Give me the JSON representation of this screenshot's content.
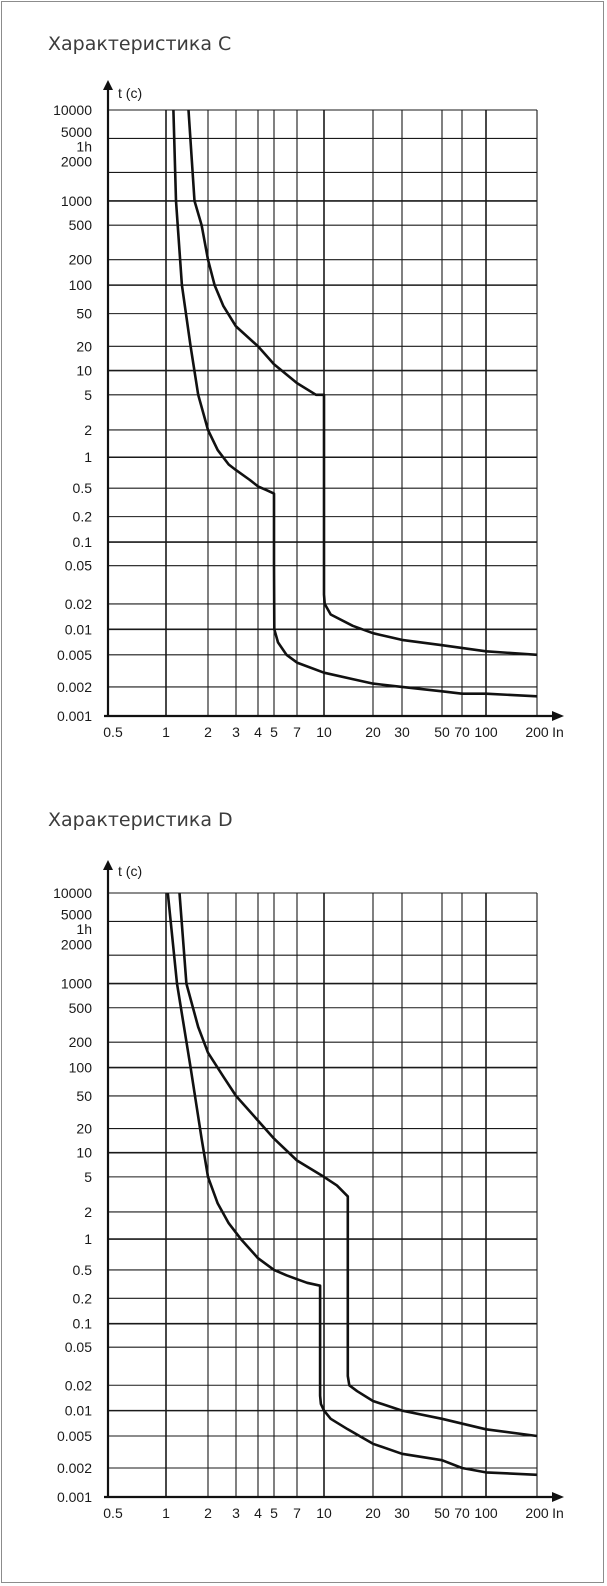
{
  "charts": [
    {
      "title": "Характеристика C",
      "ylabel": "t (c)",
      "xunit": "In",
      "y_ticks": [
        "10000",
        "5000",
        "1h",
        "2000",
        "1000",
        "500",
        "200",
        "100",
        "50",
        "20",
        "10",
        "5",
        "2",
        "1",
        "0.5",
        "0.2",
        "0.1",
        "0.05",
        "0.02",
        "0.01",
        "0.005",
        "0.002",
        "0.001"
      ],
      "x_ticks": [
        "0.5",
        "1",
        "2",
        "3",
        "4",
        "5",
        "7",
        "10",
        "20",
        "30",
        "50",
        "70",
        "100",
        "200"
      ]
    },
    {
      "title": "Характеристика D",
      "ylabel": "t (c)",
      "xunit": "In",
      "y_ticks": [
        "10000",
        "5000",
        "1h",
        "2000",
        "1000",
        "500",
        "200",
        "100",
        "50",
        "20",
        "10",
        "5",
        "2",
        "1",
        "0.5",
        "0.2",
        "0.1",
        "0.05",
        "0.02",
        "0.01",
        "0.005",
        "0.002",
        "0.001"
      ],
      "x_ticks": [
        "0.5",
        "1",
        "2",
        "3",
        "4",
        "5",
        "7",
        "10",
        "20",
        "30",
        "50",
        "70",
        "100",
        "200"
      ]
    }
  ],
  "chart_data": [
    {
      "type": "line",
      "title": "Характеристика C",
      "ylabel": "t (c)",
      "xlabel": "In",
      "x_scale": "log",
      "y_scale": "log",
      "grid": true,
      "xlim": [
        0.5,
        200
      ],
      "ylim": [
        0.001,
        10000
      ],
      "series": [
        {
          "x": [
            1.13,
            1.18,
            1.3,
            1.5,
            1.7,
            2,
            2.3,
            2.7,
            3,
            3.6,
            4,
            4.5,
            5,
            5,
            5.02,
            5.3,
            6,
            7,
            10,
            15,
            20,
            30,
            50,
            70,
            100,
            200
          ],
          "y": [
            10000,
            1000,
            100,
            20,
            5,
            2,
            1.2,
            0.85,
            0.75,
            0.6,
            0.52,
            0.47,
            0.42,
            0.05,
            0.01,
            0.007,
            0.005,
            0.004,
            0.003,
            0.0025,
            0.0022,
            0.002,
            0.0018,
            0.0017,
            0.0017,
            0.0016
          ]
        },
        {
          "x": [
            1.45,
            1.6,
            1.8,
            2,
            2.2,
            2.5,
            3,
            4,
            5,
            7,
            9,
            10,
            10,
            10.1,
            11,
            15,
            20,
            30,
            50,
            100,
            200
          ],
          "y": [
            10000,
            1000,
            500,
            200,
            100,
            60,
            35,
            20,
            12,
            7,
            5,
            5,
            0.025,
            0.02,
            0.015,
            0.011,
            0.009,
            0.0075,
            0.0065,
            0.0055,
            0.005
          ]
        }
      ]
    },
    {
      "type": "line",
      "title": "Характеристика D",
      "ylabel": "t (c)",
      "xlabel": "In",
      "x_scale": "log",
      "y_scale": "log",
      "grid": true,
      "xlim": [
        0.5,
        200
      ],
      "ylim": [
        0.001,
        10000
      ],
      "series": [
        {
          "x": [
            1.03,
            1.2,
            1.5,
            1.8,
            2,
            2.3,
            2.7,
            3.2,
            4,
            5,
            6,
            7,
            8,
            9.5,
            9.5,
            9.6,
            10,
            11,
            14,
            20,
            30,
            50,
            70,
            100,
            200
          ],
          "y": [
            10000,
            1000,
            100,
            15,
            5,
            2.5,
            1.5,
            1,
            0.65,
            0.5,
            0.42,
            0.37,
            0.33,
            0.3,
            0.015,
            0.012,
            0.01,
            0.008,
            0.006,
            0.004,
            0.003,
            0.0025,
            0.002,
            0.0018,
            0.0017
          ]
        },
        {
          "x": [
            1.25,
            1.4,
            1.7,
            2,
            2.5,
            3,
            4,
            5,
            7,
            10,
            12,
            14,
            14,
            14.3,
            16,
            20,
            30,
            50,
            100,
            200
          ],
          "y": [
            10000,
            1000,
            300,
            150,
            80,
            50,
            25,
            15,
            8,
            5,
            4,
            3,
            0.025,
            0.02,
            0.017,
            0.013,
            0.01,
            0.008,
            0.006,
            0.005
          ]
        }
      ]
    }
  ]
}
